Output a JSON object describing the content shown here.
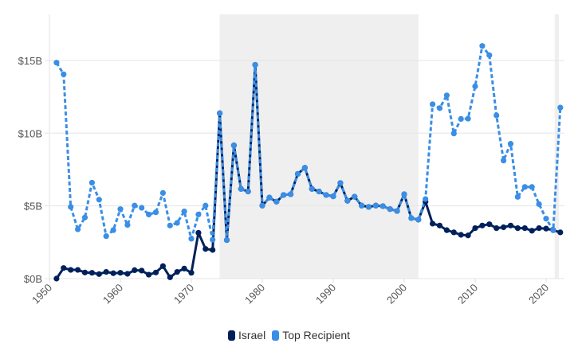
{
  "chart_data": {
    "type": "line",
    "title": "",
    "xlabel": "",
    "ylabel": "",
    "xlim": [
      1950,
      2022
    ],
    "ylim": [
      0,
      18
    ],
    "y_ticks": [
      {
        "value": 0,
        "label": "$0B"
      },
      {
        "value": 5,
        "label": "$5B"
      },
      {
        "value": 10,
        "label": "$10B"
      },
      {
        "value": 15,
        "label": "$15B"
      }
    ],
    "x_ticks": [
      {
        "value": 1950,
        "label": "1950"
      },
      {
        "value": 1960,
        "label": "1960"
      },
      {
        "value": 1970,
        "label": "1970"
      },
      {
        "value": 1980,
        "label": "1980"
      },
      {
        "value": 1990,
        "label": "1990"
      },
      {
        "value": 2000,
        "label": "2000"
      },
      {
        "value": 2010,
        "label": "2010"
      },
      {
        "value": 2020,
        "label": "2020"
      }
    ],
    "grid": true,
    "legend_position": "bottom-center",
    "shaded_ranges": [
      [
        1974,
        2002
      ],
      [
        2021.2,
        2021.8
      ]
    ],
    "x": [
      1951,
      1952,
      1953,
      1954,
      1955,
      1956,
      1957,
      1958,
      1959,
      1960,
      1961,
      1962,
      1963,
      1964,
      1965,
      1966,
      1967,
      1968,
      1969,
      1970,
      1971,
      1972,
      1973,
      1974,
      1975,
      1976,
      1977,
      1978,
      1979,
      1980,
      1981,
      1982,
      1983,
      1984,
      1985,
      1986,
      1987,
      1988,
      1989,
      1990,
      1991,
      1992,
      1993,
      1994,
      1995,
      1996,
      1997,
      1998,
      1999,
      2000,
      2001,
      2002,
      2003,
      2004,
      2005,
      2006,
      2007,
      2008,
      2009,
      2010,
      2011,
      2012,
      2013,
      2014,
      2015,
      2016,
      2017,
      2018,
      2019,
      2020,
      2021,
      2022
    ],
    "series": [
      {
        "name": "Israel",
        "color": "#00205b",
        "style": "solid",
        "values": [
          0.0,
          0.73,
          0.6,
          0.6,
          0.42,
          0.4,
          0.31,
          0.46,
          0.37,
          0.4,
          0.33,
          0.58,
          0.55,
          0.27,
          0.42,
          0.86,
          0.09,
          0.46,
          0.69,
          0.4,
          3.15,
          2.04,
          1.97,
          11.37,
          2.65,
          9.16,
          6.17,
          5.99,
          14.7,
          5.02,
          5.57,
          5.29,
          5.75,
          5.8,
          7.2,
          7.62,
          6.17,
          5.99,
          5.75,
          5.66,
          6.57,
          5.35,
          5.63,
          5.02,
          4.93,
          5.02,
          4.98,
          4.78,
          4.65,
          5.8,
          4.16,
          4.05,
          5.29,
          3.78,
          3.65,
          3.33,
          3.18,
          3.01,
          2.97,
          3.47,
          3.65,
          3.74,
          3.47,
          3.53,
          3.65,
          3.47,
          3.47,
          3.29,
          3.47,
          3.44,
          3.33,
          3.18
        ]
      },
      {
        "name": "Top Recipient",
        "color": "#3a8ee6",
        "style": "dashed",
        "values": [
          14.85,
          14.05,
          4.93,
          3.39,
          4.2,
          6.6,
          5.43,
          2.92,
          3.33,
          4.78,
          3.69,
          5.02,
          4.87,
          4.41,
          4.56,
          5.89,
          3.65,
          3.83,
          4.62,
          2.74,
          4.41,
          5.02,
          2.68,
          11.37,
          2.65,
          9.16,
          6.17,
          5.99,
          14.7,
          5.02,
          5.57,
          5.29,
          5.75,
          5.8,
          7.2,
          7.62,
          6.17,
          5.99,
          5.75,
          5.66,
          6.57,
          5.35,
          5.63,
          5.02,
          4.93,
          5.02,
          4.98,
          4.78,
          4.65,
          5.8,
          4.16,
          4.05,
          5.47,
          11.99,
          11.72,
          12.6,
          9.98,
          10.98,
          11.0,
          13.22,
          16.0,
          15.36,
          11.22,
          8.12,
          9.27,
          5.62,
          6.3,
          6.3,
          5.12,
          4.12,
          3.33,
          11.76
        ]
      }
    ]
  }
}
